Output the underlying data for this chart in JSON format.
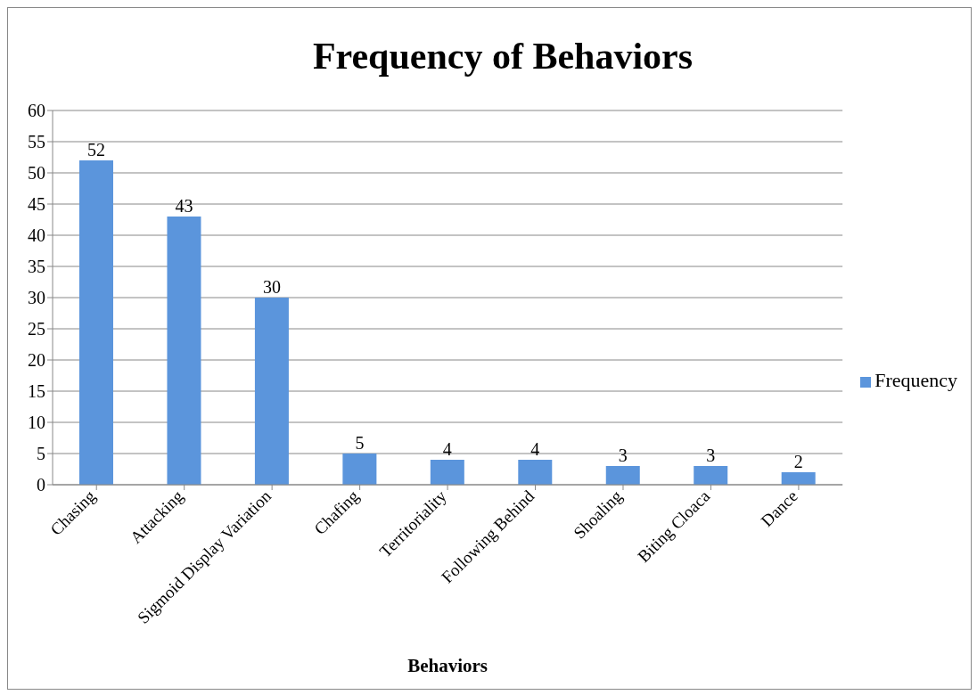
{
  "chart_data": {
    "type": "bar",
    "title": "Frequency of Behaviors",
    "xlabel": "Behaviors",
    "categories": [
      "Chasing",
      "Attacking",
      "Sigmoid Display Variation",
      "Chafing",
      "Territoriality",
      "Following Behind",
      "Shoaling",
      "Biting Cloaca",
      "Dance"
    ],
    "series": [
      {
        "name": "Frequency",
        "color": "#5b95dc",
        "values": [
          52,
          43,
          30,
          5,
          4,
          4,
          3,
          3,
          2
        ]
      }
    ],
    "ylim": [
      0,
      60
    ],
    "yticks": [
      0,
      5,
      10,
      15,
      20,
      25,
      30,
      35,
      40,
      45,
      50,
      55,
      60
    ],
    "grid": "y",
    "legend": "right",
    "data_labels": true
  }
}
